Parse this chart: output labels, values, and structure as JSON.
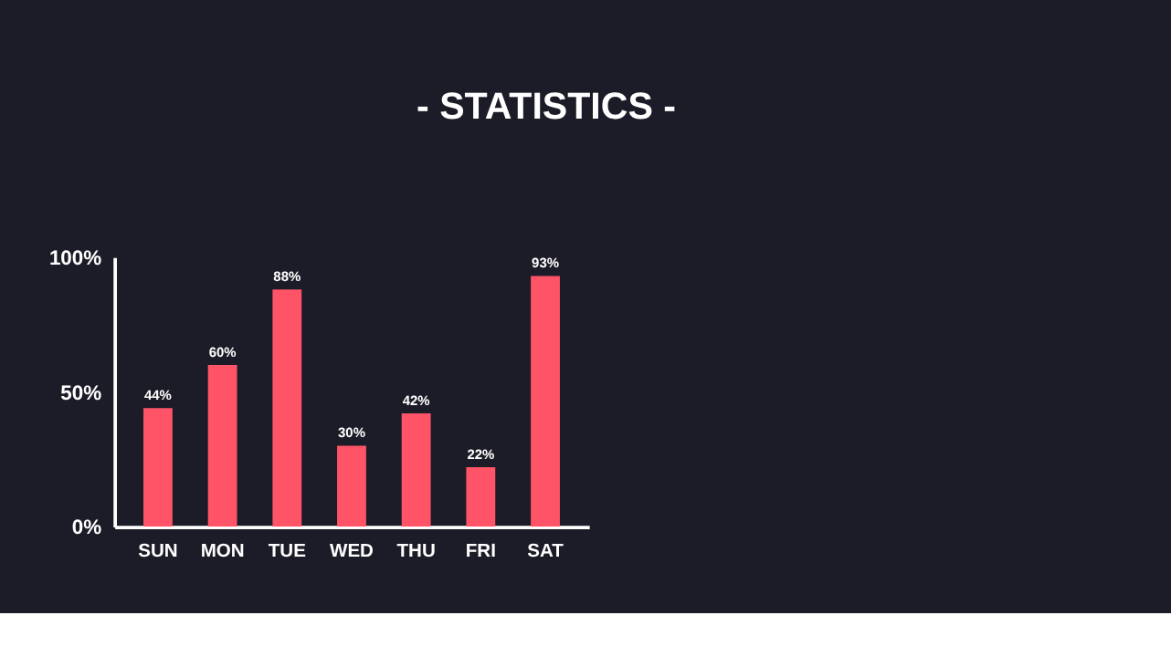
{
  "chart_data": {
    "type": "bar",
    "title": "- STATISTICS -",
    "categories": [
      "SUN",
      "MON",
      "TUE",
      "WED",
      "THU",
      "FRI",
      "SAT"
    ],
    "values": [
      44,
      60,
      88,
      30,
      42,
      22,
      93
    ],
    "color": "#ff5468",
    "ylim": [
      0,
      100
    ],
    "yticks": [
      {
        "value": 0,
        "label": "0%"
      },
      {
        "value": 50,
        "label": "50%"
      },
      {
        "value": 100,
        "label": "100%"
      }
    ],
    "value_labels": [
      "44%",
      "60%",
      "88%",
      "30%",
      "42%",
      "22%",
      "93%"
    ],
    "grid": false
  }
}
